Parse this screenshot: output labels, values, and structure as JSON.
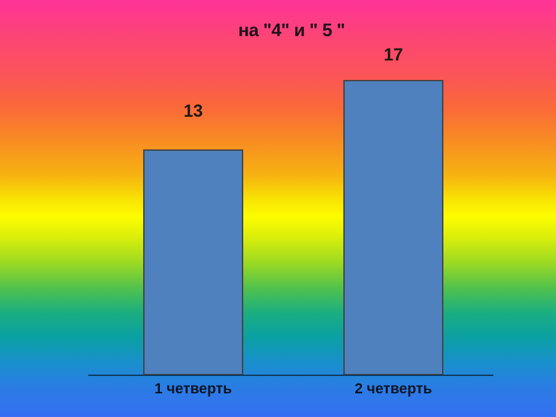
{
  "slide": {
    "title": "на \"4\" и \" 5 \""
  },
  "chart_data": {
    "type": "bar",
    "title": "на \"4\" и \" 5 \"",
    "categories": [
      "1 четверть",
      "2 четверть"
    ],
    "values": [
      13,
      17
    ],
    "value_labels": [
      "13",
      "17"
    ],
    "xlabel": "",
    "ylabel": "",
    "ylim": [
      0,
      20
    ],
    "grid": false,
    "legend": false,
    "axes_visible": {
      "x": true,
      "y": false
    },
    "data_labels_position": "above-bar"
  },
  "colors": {
    "bar_fill": "#4e81bd",
    "bar_border": "#454545",
    "axis_line": "#0e3a5e",
    "title_text": "#20111a",
    "value_text": "#1f1812",
    "category_text": "#0c1524",
    "background_gradient": [
      {
        "stop": 0,
        "color": "#ff3399"
      },
      {
        "stop": 9,
        "color": "#fc4574"
      },
      {
        "stop": 18,
        "color": "#fb5458"
      },
      {
        "stop": 26,
        "color": "#fa6a38"
      },
      {
        "stop": 34,
        "color": "#f88d22"
      },
      {
        "stop": 42,
        "color": "#f6b210"
      },
      {
        "stop": 48,
        "color": "#f8e403"
      },
      {
        "stop": 52,
        "color": "#fdfc00"
      },
      {
        "stop": 57,
        "color": "#d9ee0b"
      },
      {
        "stop": 63,
        "color": "#9cd922"
      },
      {
        "stop": 69,
        "color": "#52c24c"
      },
      {
        "stop": 75,
        "color": "#1bae80"
      },
      {
        "stop": 81,
        "color": "#0ba0a4"
      },
      {
        "stop": 87,
        "color": "#1990cd"
      },
      {
        "stop": 93,
        "color": "#2b7ce4"
      },
      {
        "stop": 100,
        "color": "#3570f3"
      }
    ]
  }
}
